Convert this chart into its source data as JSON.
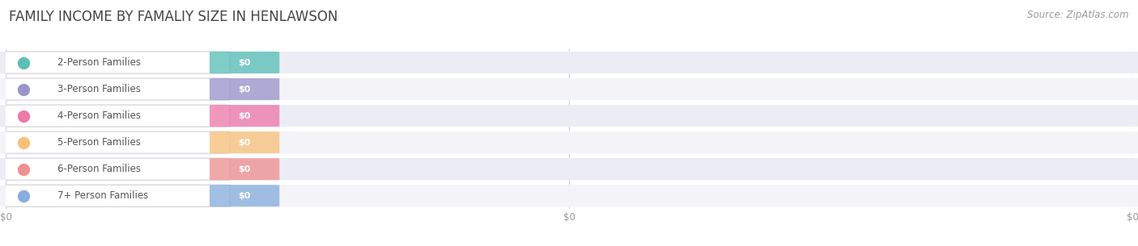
{
  "title": "FAMILY INCOME BY FAMALIY SIZE IN HENLAWSON",
  "source": "Source: ZipAtlas.com",
  "categories": [
    "2-Person Families",
    "3-Person Families",
    "4-Person Families",
    "5-Person Families",
    "6-Person Families",
    "7+ Person Families"
  ],
  "values": [
    0,
    0,
    0,
    0,
    0,
    0
  ],
  "bar_colors": [
    "#5bbfb8",
    "#9b94cc",
    "#ee7aaa",
    "#f8c07a",
    "#ee9090",
    "#88aedd"
  ],
  "value_label": "$0",
  "title_fontsize": 12,
  "source_fontsize": 8.5,
  "tick_fontsize": 8.5,
  "cat_fontsize": 8.5,
  "background_color": "#ffffff",
  "row_colors_even": "#ecedf4",
  "row_colors_odd": "#f4f4f8",
  "label_pill_color": "#ffffff",
  "label_text_color": "#555555",
  "grid_color": "#d0d0d8",
  "axis_label_color": "#999999"
}
